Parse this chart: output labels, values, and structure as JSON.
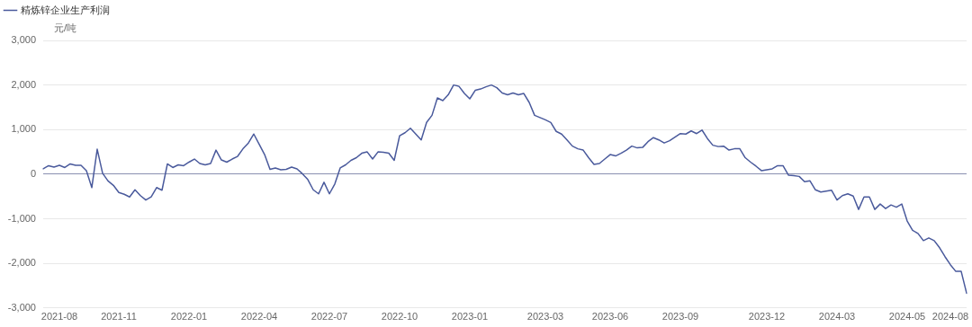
{
  "chart_data": {
    "type": "line",
    "ylabel": "元/吨",
    "legend": "top left",
    "grid": "y",
    "marker": "none",
    "line_style": "solid",
    "ylim": [
      -3000,
      3000
    ],
    "yticks": [
      {
        "value": -3000,
        "label": "-3,000"
      },
      {
        "value": -2000,
        "label": "-2,000"
      },
      {
        "value": -1000,
        "label": "-1,000"
      },
      0,
      {
        "value": 1000,
        "label": "1,000"
      },
      {
        "value": 2000,
        "label": "2,000"
      },
      {
        "value": 3000,
        "label": "3,000"
      }
    ],
    "categories": [
      null,
      null,
      null,
      "2021-08",
      null,
      null,
      null,
      null,
      null,
      null,
      null,
      null,
      null,
      null,
      "2021-11",
      null,
      null,
      null,
      null,
      null,
      null,
      null,
      null,
      null,
      null,
      null,
      null,
      "2022-01",
      null,
      null,
      null,
      null,
      null,
      null,
      null,
      null,
      null,
      null,
      null,
      null,
      "2022-04",
      null,
      null,
      null,
      null,
      null,
      null,
      null,
      null,
      null,
      null,
      null,
      null,
      "2022-07",
      null,
      null,
      null,
      null,
      null,
      null,
      null,
      null,
      null,
      null,
      null,
      null,
      "2022-10",
      null,
      null,
      null,
      null,
      null,
      null,
      null,
      null,
      null,
      null,
      null,
      null,
      "2023-01",
      null,
      null,
      null,
      null,
      null,
      null,
      null,
      null,
      null,
      null,
      null,
      null,
      null,
      "2023-03",
      null,
      null,
      null,
      null,
      null,
      null,
      null,
      null,
      null,
      null,
      null,
      "2023-06",
      null,
      null,
      null,
      null,
      null,
      null,
      null,
      null,
      null,
      null,
      null,
      null,
      "2023-09",
      null,
      null,
      null,
      null,
      null,
      null,
      null,
      null,
      null,
      null,
      null,
      null,
      null,
      null,
      null,
      "2023-12",
      null,
      null,
      null,
      null,
      null,
      null,
      null,
      null,
      null,
      null,
      null,
      null,
      "2024-03",
      null,
      null,
      null,
      null,
      null,
      null,
      null,
      null,
      null,
      null,
      null,
      null,
      "2024-05",
      null,
      null,
      null,
      null,
      null,
      null,
      null,
      "2024-08",
      null,
      null,
      null
    ],
    "series": [
      {
        "name": "精炼锌企业生产利润",
        "color": "#4a5a9c",
        "values": [
          120,
          190,
          160,
          200,
          150,
          230,
          200,
          200,
          80,
          -300,
          560,
          20,
          -150,
          -250,
          -410,
          -450,
          -510,
          -350,
          -480,
          -580,
          -510,
          -300,
          -360,
          230,
          150,
          210,
          190,
          270,
          340,
          240,
          210,
          240,
          540,
          320,
          270,
          340,
          400,
          570,
          700,
          900,
          670,
          440,
          110,
          140,
          100,
          110,
          160,
          120,
          10,
          -120,
          -350,
          -440,
          -180,
          -440,
          -220,
          140,
          210,
          310,
          370,
          470,
          500,
          340,
          500,
          490,
          470,
          310,
          860,
          930,
          1030,
          900,
          770,
          1160,
          1320,
          1710,
          1650,
          1780,
          2000,
          1970,
          1810,
          1690,
          1880,
          1910,
          1960,
          2000,
          1940,
          1820,
          1780,
          1820,
          1780,
          1810,
          1610,
          1320,
          1270,
          1220,
          1160,
          960,
          900,
          770,
          630,
          570,
          540,
          370,
          220,
          240,
          340,
          440,
          410,
          470,
          540,
          630,
          590,
          600,
          730,
          820,
          770,
          700,
          750,
          830,
          910,
          900,
          970,
          910,
          990,
          800,
          650,
          620,
          630,
          540,
          570,
          570,
          370,
          270,
          180,
          80,
          100,
          120,
          190,
          190,
          -20,
          -30,
          -50,
          -170,
          -150,
          -350,
          -400,
          -380,
          -360,
          -580,
          -480,
          -440,
          -490,
          -790,
          -510,
          -510,
          -790,
          -670,
          -770,
          -690,
          -740,
          -670,
          -1050,
          -1260,
          -1330,
          -1490,
          -1430,
          -1490,
          -1650,
          -1850,
          -2030,
          -2180,
          -2180,
          -2670
        ]
      }
    ]
  }
}
